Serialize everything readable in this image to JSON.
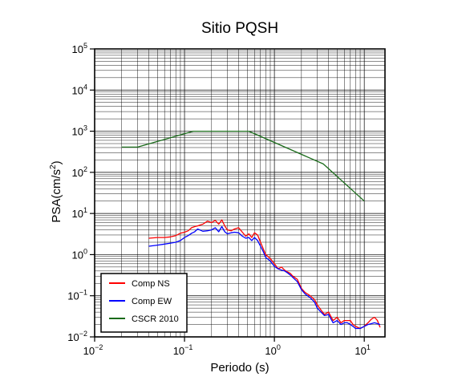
{
  "chart_data": {
    "type": "line",
    "title": "Sitio PQSH",
    "xlabel": "Periodo (s)",
    "ylabel_prefix": "PSA(cm/s",
    "ylabel_sup": "2",
    "ylabel_suffix": ")",
    "x_scale": "log",
    "y_scale": "log",
    "xlim": [
      0.01,
      17
    ],
    "ylim": [
      0.01,
      100000
    ],
    "grid": true,
    "legend_position": "bottom-left",
    "x_ticks": [
      {
        "value": 0.01,
        "base": "10",
        "exp": "−2"
      },
      {
        "value": 0.1,
        "base": "10",
        "exp": "−1"
      },
      {
        "value": 1,
        "base": "10",
        "exp": "0"
      },
      {
        "value": 10,
        "base": "10",
        "exp": "1"
      }
    ],
    "y_ticks": [
      {
        "value": 0.01,
        "base": "10",
        "exp": "−2"
      },
      {
        "value": 0.1,
        "base": "10",
        "exp": "−1"
      },
      {
        "value": 1,
        "base": "10",
        "exp": "0"
      },
      {
        "value": 10,
        "base": "10",
        "exp": "1"
      },
      {
        "value": 100,
        "base": "10",
        "exp": "2"
      },
      {
        "value": 1000,
        "base": "10",
        "exp": "3"
      },
      {
        "value": 10000,
        "base": "10",
        "exp": "4"
      },
      {
        "value": 100000,
        "base": "10",
        "exp": "5"
      }
    ],
    "series": [
      {
        "name": "Comp NS",
        "color": "#ff0000",
        "x": [
          0.04,
          0.05,
          0.06,
          0.07,
          0.08,
          0.09,
          0.1,
          0.11,
          0.12,
          0.13,
          0.14,
          0.16,
          0.18,
          0.2,
          0.22,
          0.24,
          0.26,
          0.28,
          0.3,
          0.33,
          0.36,
          0.4,
          0.44,
          0.48,
          0.52,
          0.56,
          0.6,
          0.65,
          0.7,
          0.75,
          0.8,
          0.9,
          1.0,
          1.1,
          1.2,
          1.3,
          1.4,
          1.5,
          1.6,
          1.8,
          2.0,
          2.2,
          2.5,
          2.8,
          3.0,
          3.3,
          3.6,
          4.0,
          4.5,
          5.0,
          5.5,
          6.0,
          6.5,
          7.0,
          7.5,
          8.0,
          9.0,
          10.0,
          11.0,
          12.0,
          13.0,
          14.0,
          15.0
        ],
        "y": [
          2.5,
          2.6,
          2.6,
          2.7,
          2.9,
          3.3,
          3.5,
          3.8,
          4.5,
          4.8,
          5.0,
          5.5,
          6.5,
          6.0,
          6.8,
          5.5,
          7.0,
          5.0,
          4.0,
          3.8,
          4.2,
          4.5,
          3.5,
          2.8,
          3.2,
          2.6,
          3.4,
          3.0,
          2.0,
          1.4,
          1.0,
          0.8,
          0.6,
          0.45,
          0.5,
          0.42,
          0.38,
          0.35,
          0.3,
          0.25,
          0.15,
          0.12,
          0.1,
          0.08,
          0.06,
          0.045,
          0.035,
          0.04,
          0.025,
          0.03,
          0.022,
          0.025,
          0.025,
          0.025,
          0.02,
          0.018,
          0.016,
          0.018,
          0.022,
          0.027,
          0.03,
          0.025,
          0.017
        ]
      },
      {
        "name": "Comp EW",
        "color": "#0000ff",
        "x": [
          0.04,
          0.05,
          0.06,
          0.07,
          0.08,
          0.09,
          0.1,
          0.11,
          0.12,
          0.13,
          0.14,
          0.16,
          0.18,
          0.2,
          0.22,
          0.24,
          0.26,
          0.28,
          0.3,
          0.33,
          0.36,
          0.4,
          0.44,
          0.48,
          0.52,
          0.56,
          0.6,
          0.65,
          0.7,
          0.75,
          0.8,
          0.9,
          1.0,
          1.1,
          1.2,
          1.3,
          1.4,
          1.5,
          1.6,
          1.8,
          2.0,
          2.2,
          2.5,
          2.8,
          3.0,
          3.3,
          3.6,
          4.0,
          4.5,
          5.0,
          5.5,
          6.0,
          6.5,
          7.0,
          7.5,
          8.0,
          9.0,
          10.0,
          11.0,
          12.0,
          13.0,
          14.0,
          15.0
        ],
        "y": [
          1.6,
          1.7,
          1.8,
          1.9,
          2.0,
          2.2,
          2.6,
          2.9,
          3.3,
          3.6,
          4.2,
          3.7,
          3.8,
          4.0,
          4.5,
          3.6,
          4.8,
          3.6,
          3.2,
          3.4,
          3.5,
          3.4,
          2.8,
          2.5,
          2.6,
          2.2,
          2.6,
          2.2,
          1.6,
          1.2,
          0.85,
          0.7,
          0.52,
          0.45,
          0.42,
          0.4,
          0.36,
          0.32,
          0.28,
          0.22,
          0.14,
          0.11,
          0.09,
          0.07,
          0.05,
          0.04,
          0.033,
          0.035,
          0.022,
          0.025,
          0.02,
          0.022,
          0.022,
          0.02,
          0.018,
          0.016,
          0.016,
          0.018,
          0.02,
          0.021,
          0.022,
          0.021,
          0.02
        ]
      },
      {
        "name": "CSCR 2010",
        "color": "#1a6b1a",
        "x": [
          0.02,
          0.03,
          0.125,
          0.52,
          3.5,
          10.0
        ],
        "y": [
          410,
          410,
          1000,
          1000,
          160,
          20
        ]
      }
    ]
  }
}
